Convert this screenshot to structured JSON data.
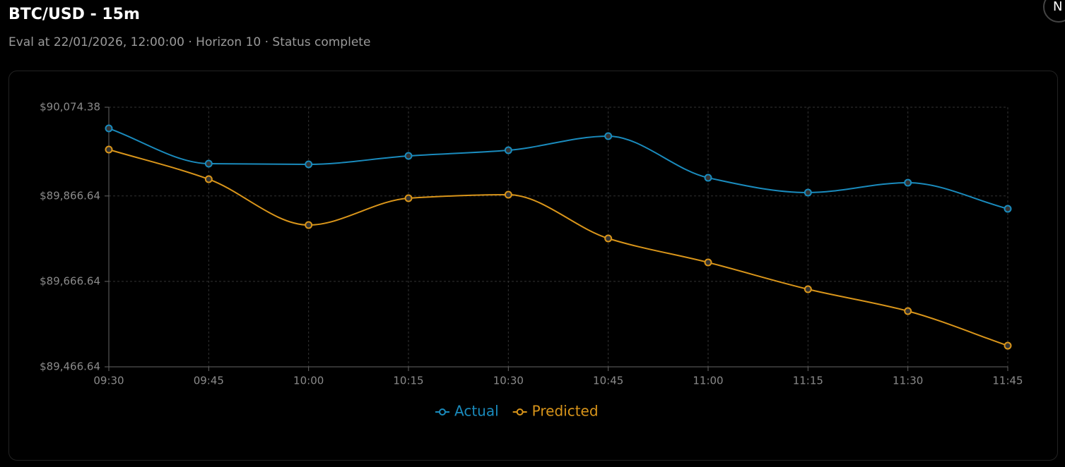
{
  "header": {
    "title": "BTC/USD - 15m",
    "subtitle": "Eval at 22/01/2026, 12:00:00 · Horizon 10 · Status complete",
    "avatar": "N"
  },
  "chart_data": {
    "type": "line",
    "categories": [
      "09:30",
      "09:45",
      "10:00",
      "10:15",
      "10:30",
      "10:45",
      "11:00",
      "11:15",
      "11:30",
      "11:45"
    ],
    "series": [
      {
        "name": "Actual",
        "color": "#1a8bbd",
        "values": [
          90024.8,
          89942.3,
          89940.6,
          89960.4,
          89973.6,
          90006.7,
          89909.2,
          89874.6,
          89897.7,
          89836.6
        ]
      },
      {
        "name": "Predicted",
        "color": "#d9951a",
        "values": [
          89975.3,
          89905.9,
          89798.6,
          89861.3,
          89869.6,
          89767.2,
          89711.0,
          89648.3,
          89597.1,
          89516.1
        ]
      }
    ],
    "ylim": [
      89466.64,
      90074.38
    ],
    "yticks": [
      {
        "value": 89466.64,
        "label": "$89,466.64"
      },
      {
        "value": 89666.64,
        "label": "$89,666.64"
      },
      {
        "value": 89866.64,
        "label": "$89,866.64"
      },
      {
        "value": 90074.38,
        "label": "$90,074.38"
      }
    ],
    "grid": true,
    "legend": "bottom"
  }
}
